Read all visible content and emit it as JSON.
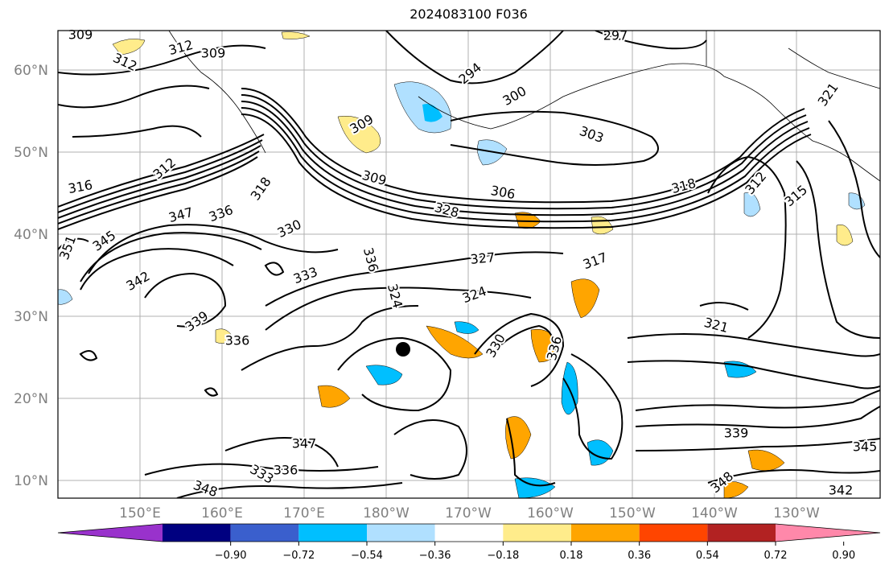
{
  "title": "2024083100 F036",
  "lat_labels": [
    "60°N",
    "50°N",
    "40°N",
    "30°N",
    "20°N",
    "10°N"
  ],
  "lon_labels": [
    "150°E",
    "160°E",
    "170°E",
    "180°W",
    "170°W",
    "160°W",
    "150°W",
    "140°W",
    "130°W"
  ],
  "colorbar": {
    "ticks": [
      "−0.90",
      "−0.72",
      "−0.54",
      "−0.36",
      "−0.18",
      "0.18",
      "0.36",
      "0.54",
      "0.72",
      "0.90"
    ],
    "colors": [
      "#9932cc",
      "#000080",
      "#3a5fcd",
      "#00bfff",
      "#b0e0ff",
      "#ffffff",
      "#ffec8b",
      "#ffa500",
      "#ff4500",
      "#b22222",
      "#ff88aa"
    ]
  },
  "contour_labels": [
    "309",
    "312",
    "312",
    "309",
    "294",
    "297",
    "300",
    "303",
    "309",
    "309",
    "306",
    "316",
    "318",
    "321",
    "315",
    "312",
    "345",
    "347",
    "336",
    "333",
    "330",
    "328",
    "327",
    "324",
    "321",
    "317",
    "336",
    "342",
    "339",
    "336",
    "333",
    "330",
    "336",
    "347",
    "336",
    "348",
    "339",
    "345",
    "342",
    "348",
    "318",
    "312",
    "351",
    "324"
  ]
}
